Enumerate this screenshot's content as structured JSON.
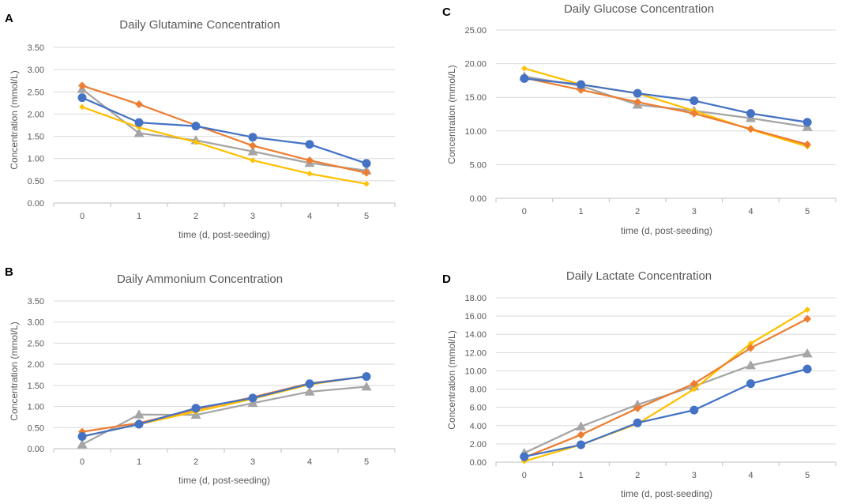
{
  "colors": {
    "series1": "#4472C4",
    "series2": "#ED7D31",
    "series3": "#A5A5A5",
    "series4": "#FFC000"
  },
  "chart_data": [
    {
      "panel": "A",
      "type": "line",
      "title": "Daily Glutamine Concentration",
      "xlabel": "time (d, post-seeding)",
      "ylabel": "Concentration (mmol/L)",
      "x": [
        0,
        1,
        2,
        3,
        4,
        5
      ],
      "x_tick_labels": [
        "0",
        "1",
        "2",
        "3",
        "4",
        "5"
      ],
      "ylim": [
        0,
        3.5
      ],
      "y_ticks": [
        0,
        0.5,
        1,
        1.5,
        2,
        2.5,
        3,
        3.5
      ],
      "y_tick_labels": [
        "0.00",
        "0.50",
        "1.00",
        "1.50",
        "2.00",
        "2.50",
        "3.00",
        "3.50"
      ],
      "series": [
        {
          "name": "gray triangle",
          "marker": "triangle",
          "color": "#A5A5A5",
          "values": [
            2.56,
            1.57,
            1.41,
            1.16,
            0.9,
            0.73
          ]
        },
        {
          "name": "yellow diamond",
          "marker": "diamond-small",
          "color": "#FFC000",
          "values": [
            2.16,
            1.7,
            1.37,
            0.96,
            0.66,
            0.43
          ]
        },
        {
          "name": "orange diamond",
          "marker": "diamond",
          "color": "#ED7D31",
          "values": [
            2.64,
            2.22,
            1.75,
            1.29,
            0.96,
            0.68
          ]
        },
        {
          "name": "blue circle",
          "marker": "circle",
          "color": "#4472C4",
          "values": [
            2.37,
            1.81,
            1.73,
            1.48,
            1.32,
            0.89
          ]
        }
      ]
    },
    {
      "panel": "C",
      "type": "line",
      "title": "Daily Glucose Concentration",
      "xlabel": "time (d, post-seeding)",
      "ylabel": "Concentration (mmol/L)",
      "x": [
        0,
        1,
        2,
        3,
        4,
        5
      ],
      "x_tick_labels": [
        "0",
        "1",
        "2",
        "3",
        "4",
        "5"
      ],
      "ylim": [
        0,
        25
      ],
      "y_ticks": [
        0,
        5,
        10,
        15,
        20,
        25
      ],
      "y_tick_labels": [
        "0.00",
        "5.00",
        "10.00",
        "15.00",
        "20.00",
        "25.00"
      ],
      "series": [
        {
          "name": "gray triangle",
          "marker": "triangle",
          "color": "#A5A5A5",
          "values": [
            18.1,
            16.7,
            13.9,
            13.0,
            11.9,
            10.6
          ]
        },
        {
          "name": "yellow diamond",
          "marker": "diamond-small",
          "color": "#FFC000",
          "values": [
            19.3,
            16.9,
            15.6,
            13.0,
            10.2,
            7.7
          ]
        },
        {
          "name": "orange diamond",
          "marker": "diamond",
          "color": "#ED7D31",
          "values": [
            17.9,
            16.1,
            14.3,
            12.6,
            10.3,
            8.0
          ]
        },
        {
          "name": "blue circle",
          "marker": "circle",
          "color": "#4472C4",
          "values": [
            17.8,
            16.9,
            15.6,
            14.5,
            12.6,
            11.3
          ]
        }
      ]
    },
    {
      "panel": "B",
      "type": "line",
      "title": "Daily Ammonium Concentration",
      "xlabel": "time (d, post-seeding)",
      "ylabel": "Concentration (mmol/L)",
      "x": [
        0,
        1,
        2,
        3,
        4,
        5
      ],
      "x_tick_labels": [
        "0",
        "1",
        "2",
        "3",
        "4",
        "5"
      ],
      "ylim": [
        0,
        3.5
      ],
      "y_ticks": [
        0,
        0.5,
        1,
        1.5,
        2,
        2.5,
        3,
        3.5
      ],
      "y_tick_labels": [
        "0.00",
        "0.50",
        "1.00",
        "1.50",
        "2.00",
        "2.50",
        "3.00",
        "3.50"
      ],
      "series": [
        {
          "name": "gray triangle",
          "marker": "triangle",
          "color": "#A5A5A5",
          "values": [
            0.1,
            0.81,
            0.8,
            1.08,
            1.35,
            1.47
          ]
        },
        {
          "name": "yellow diamond",
          "marker": "diamond-small",
          "color": "#FFC000",
          "values": [
            0.29,
            0.58,
            0.88,
            1.18,
            1.52,
            1.72
          ]
        },
        {
          "name": "orange diamond",
          "marker": "diamond",
          "color": "#ED7D31",
          "values": [
            0.4,
            0.61,
            0.93,
            1.22,
            1.55,
            1.71
          ]
        },
        {
          "name": "blue circle",
          "marker": "circle",
          "color": "#4472C4",
          "values": [
            0.29,
            0.58,
            0.96,
            1.2,
            1.54,
            1.71
          ]
        }
      ]
    },
    {
      "panel": "D",
      "type": "line",
      "title": "Daily Lactate Concentration",
      "xlabel": "time (d, post-seeding)",
      "ylabel": "Concentration (mmol/L)",
      "x": [
        0,
        1,
        2,
        3,
        4,
        5
      ],
      "x_tick_labels": [
        "0",
        "1",
        "2",
        "3",
        "4",
        "5"
      ],
      "ylim": [
        0,
        18
      ],
      "y_ticks": [
        0,
        2,
        4,
        6,
        8,
        10,
        12,
        14,
        16,
        18
      ],
      "y_tick_labels": [
        "0.00",
        "2.00",
        "4.00",
        "6.00",
        "8.00",
        "10.00",
        "12.00",
        "14.00",
        "16.00",
        "18.00"
      ],
      "series": [
        {
          "name": "gray triangle",
          "marker": "triangle",
          "color": "#A5A5A5",
          "values": [
            1.0,
            3.9,
            6.3,
            8.3,
            10.6,
            11.9
          ]
        },
        {
          "name": "yellow diamond",
          "marker": "diamond-small",
          "color": "#FFC000",
          "values": [
            0.1,
            1.9,
            4.2,
            8.0,
            13.0,
            16.7
          ]
        },
        {
          "name": "orange diamond",
          "marker": "diamond",
          "color": "#ED7D31",
          "values": [
            0.5,
            3.0,
            5.9,
            8.6,
            12.5,
            15.7
          ]
        },
        {
          "name": "blue circle",
          "marker": "circle",
          "color": "#4472C4",
          "values": [
            0.6,
            1.9,
            4.3,
            5.7,
            8.6,
            10.2
          ]
        }
      ]
    }
  ]
}
